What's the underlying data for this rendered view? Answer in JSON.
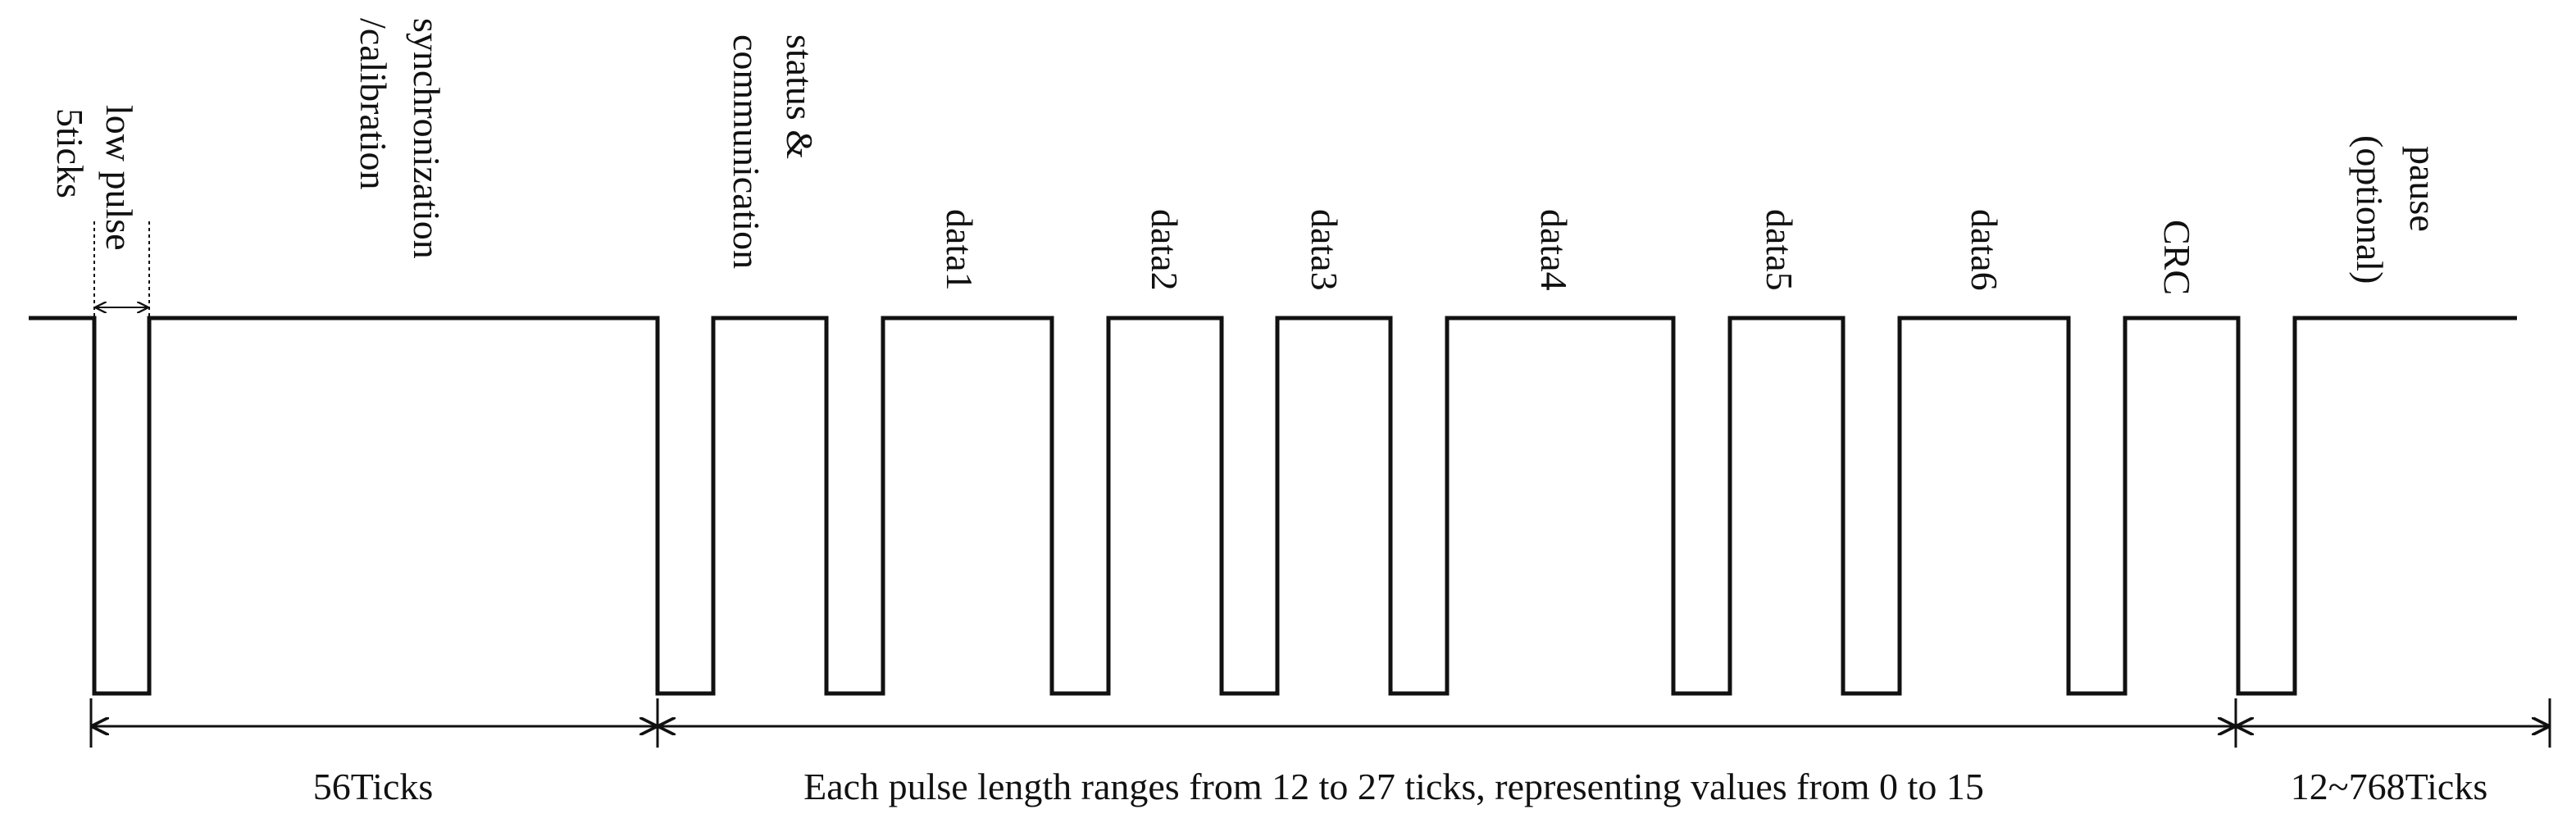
{
  "segments": {
    "ticks5": "5ticks",
    "low_pulse": "low pulse",
    "sync_line1": "synchronization",
    "sync_line2": "/calibration",
    "status_line1": "status &",
    "status_line2": "communication",
    "data1": "data1",
    "data2": "data2",
    "data3": "data3",
    "data4": "data4",
    "data5": "data5",
    "data6": "data6",
    "crc": "CRC",
    "pause_line1": "pause",
    "pause_line2": "(optional)"
  },
  "spans": {
    "sync": "56Ticks",
    "nibbles": "Each pulse length ranges from 12 to 27 ticks, representing values from 0 to 15",
    "pause": "12~768Ticks"
  }
}
